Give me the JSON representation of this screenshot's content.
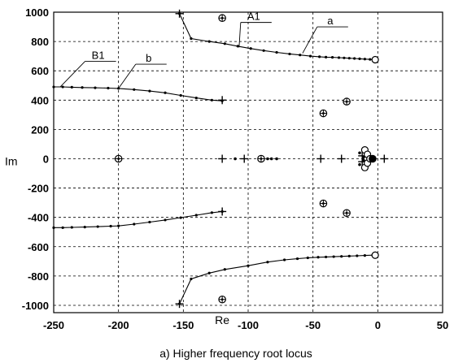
{
  "chart_data": {
    "type": "scatter",
    "title": "",
    "caption": "a) Higher frequency root locus",
    "xlabel": "Re",
    "ylabel": "Im",
    "xlim": [
      -250,
      50
    ],
    "ylim": [
      -1050,
      1000
    ],
    "xticks": [
      "-250",
      "-200",
      "-150",
      "-100",
      "-50",
      "0",
      "50"
    ],
    "xtick_values": [
      -250,
      -200,
      -150,
      -100,
      -50,
      0,
      50
    ],
    "yticks": [
      "1000",
      "800",
      "600",
      "400",
      "200",
      "0",
      "-200",
      "-400",
      "-600",
      "-800",
      "-1000"
    ],
    "ytick_values": [
      1000,
      800,
      600,
      400,
      200,
      0,
      -200,
      -400,
      -600,
      -800,
      -1000
    ],
    "grid": true,
    "annotations": [
      {
        "text": "A1",
        "x": -107,
        "y": 760,
        "label_x": -102,
        "label_y": 930
      },
      {
        "text": "a",
        "x": -58,
        "y": 720,
        "label_x": -43,
        "label_y": 900
      },
      {
        "text": "B1",
        "x": -245,
        "y": 490,
        "label_x": -222,
        "label_y": 665
      },
      {
        "text": "b",
        "x": -200,
        "y": 480,
        "label_x": -183,
        "label_y": 645
      }
    ],
    "series": [
      {
        "marker": "line-dots",
        "points": [
          [
            -153,
            990
          ],
          [
            -144,
            820
          ],
          [
            -130,
            800
          ],
          [
            -118,
            785
          ],
          [
            -108,
            768
          ],
          [
            -98,
            752
          ],
          [
            -88,
            738
          ],
          [
            -78,
            726
          ],
          [
            -68,
            715
          ],
          [
            -60,
            708
          ],
          [
            -52,
            700
          ],
          [
            -45,
            696
          ],
          [
            -40,
            693
          ],
          [
            -35,
            692
          ],
          [
            -30,
            690
          ],
          [
            -26,
            688
          ],
          [
            -22,
            686
          ],
          [
            -18,
            684
          ],
          [
            -14,
            682
          ],
          [
            -10,
            680
          ],
          [
            -6,
            678
          ],
          [
            -2,
            676
          ]
        ]
      },
      {
        "marker": "line-dots",
        "points": [
          [
            -153,
            -990
          ],
          [
            -144,
            -820
          ],
          [
            -130,
            -780
          ],
          [
            -118,
            -755
          ],
          [
            -100,
            -730
          ],
          [
            -85,
            -705
          ],
          [
            -72,
            -690
          ],
          [
            -62,
            -682
          ],
          [
            -54,
            -676
          ],
          [
            -46,
            -672
          ],
          [
            -40,
            -670
          ],
          [
            -34,
            -668
          ],
          [
            -28,
            -666
          ],
          [
            -22,
            -664
          ],
          [
            -16,
            -662
          ],
          [
            -10,
            -660
          ],
          [
            -4,
            -658
          ]
        ]
      },
      {
        "marker": "line-dots",
        "points": [
          [
            -250,
            490
          ],
          [
            -243,
            490
          ],
          [
            -236,
            488
          ],
          [
            -228,
            486
          ],
          [
            -218,
            484
          ],
          [
            -208,
            482
          ],
          [
            -200,
            480
          ],
          [
            -188,
            472
          ],
          [
            -176,
            462
          ],
          [
            -164,
            450
          ],
          [
            -152,
            432
          ],
          [
            -140,
            415
          ],
          [
            -128,
            400
          ],
          [
            -120,
            395
          ]
        ]
      },
      {
        "marker": "line-dots",
        "points": [
          [
            -250,
            -470
          ],
          [
            -243,
            -470
          ],
          [
            -236,
            -468
          ],
          [
            -226,
            -466
          ],
          [
            -216,
            -463
          ],
          [
            -206,
            -460
          ],
          [
            -200,
            -458
          ],
          [
            -188,
            -446
          ],
          [
            -176,
            -432
          ],
          [
            -164,
            -418
          ],
          [
            -152,
            -402
          ],
          [
            -140,
            -385
          ],
          [
            -128,
            -368
          ],
          [
            -120,
            -360
          ]
        ]
      },
      {
        "marker": "cross",
        "points": [
          [
            -153,
            990
          ],
          [
            -153,
            -990
          ],
          [
            -120,
            400
          ],
          [
            -120,
            -360
          ],
          [
            -120,
            0
          ],
          [
            -103,
            0
          ],
          [
            -44,
            0
          ],
          [
            -28,
            0
          ],
          [
            5,
            0
          ],
          [
            -12,
            -20
          ],
          [
            -12,
            20
          ]
        ]
      },
      {
        "marker": "open-circle",
        "points": [
          [
            -2,
            676
          ],
          [
            -2,
            -658
          ],
          [
            -10,
            60
          ],
          [
            -10,
            -60
          ],
          [
            -8,
            30
          ],
          [
            -8,
            -30
          ],
          [
            -6,
            0
          ]
        ]
      },
      {
        "marker": "circle-dot",
        "points": [
          [
            -120,
            960
          ],
          [
            -120,
            -960
          ],
          [
            -24,
            390
          ],
          [
            -24,
            -370
          ],
          [
            -42,
            310
          ],
          [
            -42,
            -305
          ],
          [
            -200,
            0
          ],
          [
            -90,
            0
          ],
          [
            -4,
            0
          ]
        ]
      },
      {
        "marker": "dot",
        "points": [
          [
            -110,
            0
          ],
          [
            -85,
            0
          ],
          [
            -82,
            0
          ],
          [
            -78,
            0
          ],
          [
            -14,
            40
          ],
          [
            -14,
            -40
          ],
          [
            -11,
            10
          ],
          [
            -11,
            -10
          ]
        ]
      }
    ]
  }
}
